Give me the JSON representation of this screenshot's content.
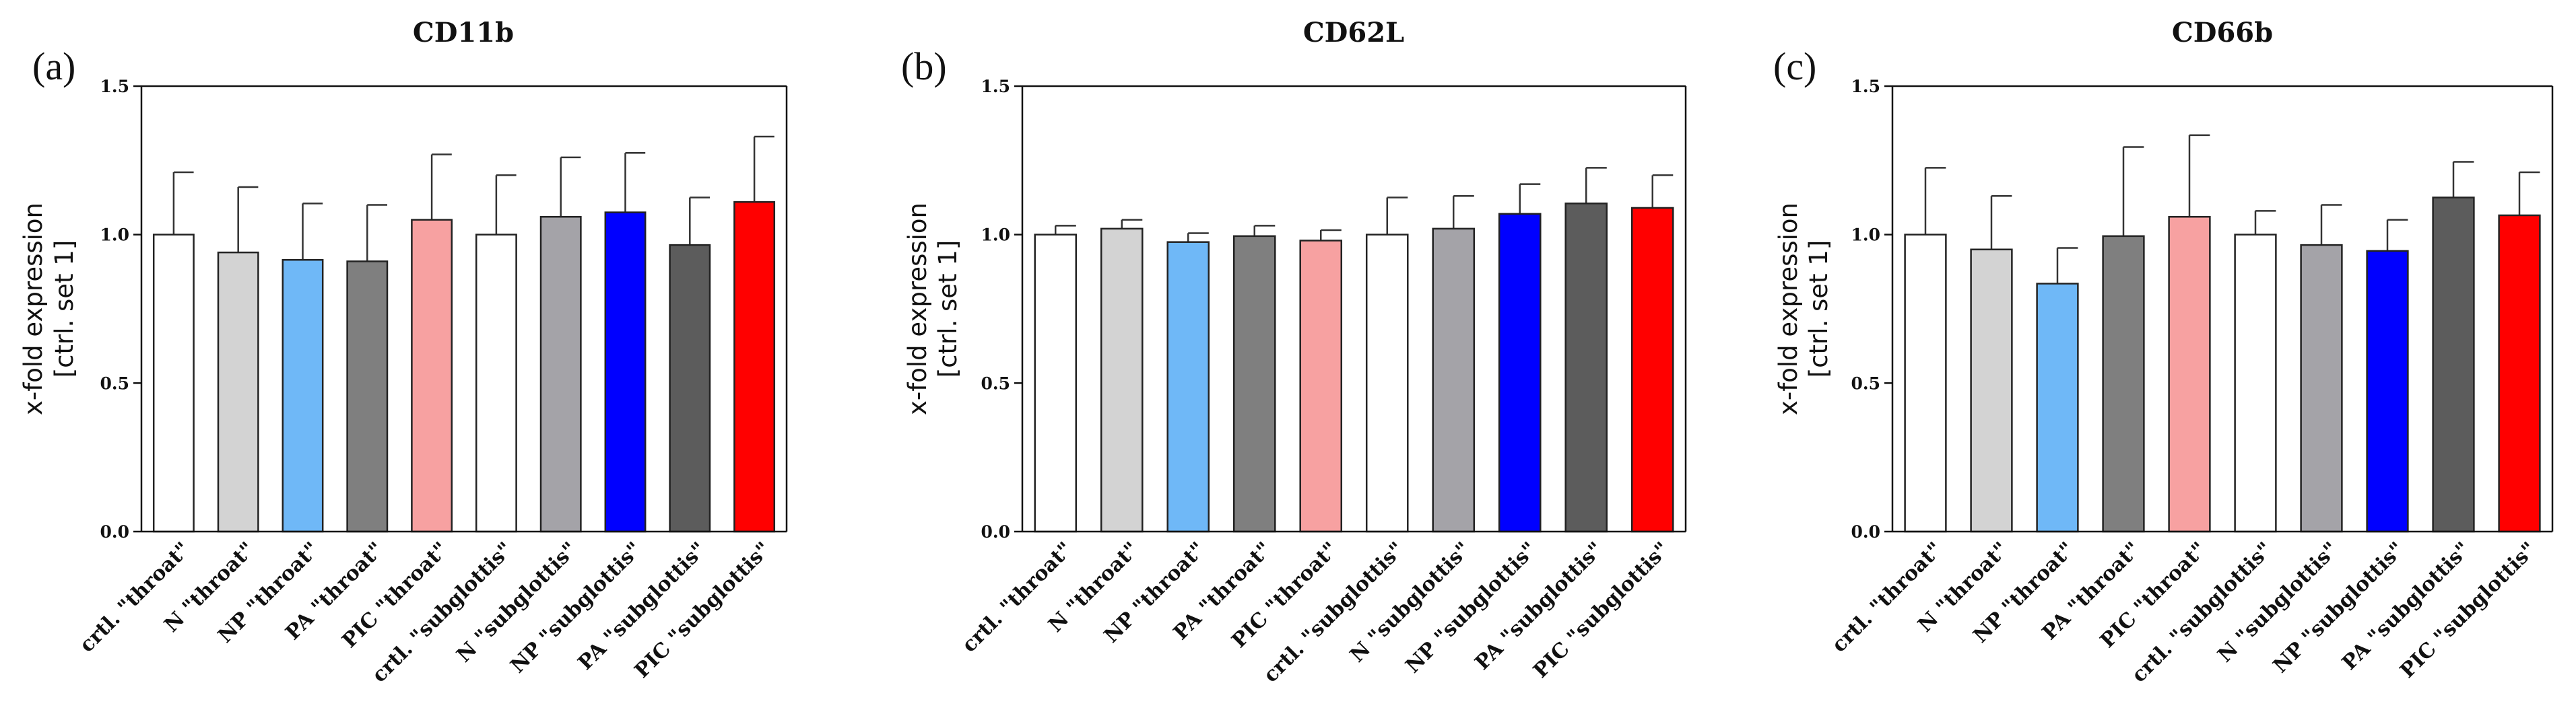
{
  "chart_data": [
    {
      "type": "bar",
      "panel": "(a)",
      "title": "CD11b",
      "ylabel_line1": "x-fold expression",
      "ylabel_line2": "[ctrl. set 1]",
      "xlabel": "",
      "ylim": [
        0,
        1.5
      ],
      "yticks": [
        "0.0",
        "0.5",
        "1.0",
        "1.5"
      ],
      "categories": [
        "crtl. \"throat\"",
        "N \"throat\"",
        "NP \"throat\"",
        "PA \"throat\"",
        "PIC \"throat\"",
        "crtl. \"subglottis\"",
        "N \"subglottis\"",
        "NP \"subglottis\"",
        "PA \"subglottis\"",
        "PIC \"subglottis\""
      ],
      "values": [
        1.0,
        0.94,
        0.915,
        0.91,
        1.05,
        1.0,
        1.06,
        1.075,
        0.965,
        1.11
      ],
      "errors": [
        0.21,
        0.22,
        0.19,
        0.19,
        0.22,
        0.2,
        0.2,
        0.2,
        0.16,
        0.22
      ],
      "colors": [
        "#ffffff",
        "#d3d3d3",
        "#6fb8f7",
        "#7f7f7f",
        "#f7a1a1",
        "#ffffff",
        "#a4a3a8",
        "#0000ff",
        "#5c5c5c",
        "#ff0000"
      ]
    },
    {
      "type": "bar",
      "panel": "(b)",
      "title": "CD62L",
      "ylabel_line1": "x-fold expression",
      "ylabel_line2": "[ctrl. set 1]",
      "xlabel": "",
      "ylim": [
        0,
        1.5
      ],
      "yticks": [
        "0.0",
        "0.5",
        "1.0",
        "1.5"
      ],
      "categories": [
        "crtl. \"throat\"",
        "N \"throat\"",
        "NP \"throat\"",
        "PA \"throat\"",
        "PIC \"throat\"",
        "crtl. \"subglottis\"",
        "N \"subglottis\"",
        "NP \"subglottis\"",
        "PA \"subglottis\"",
        "PIC \"subglottis\""
      ],
      "values": [
        1.0,
        1.02,
        0.975,
        0.995,
        0.98,
        1.0,
        1.02,
        1.07,
        1.105,
        1.09
      ],
      "errors": [
        0.03,
        0.03,
        0.03,
        0.035,
        0.035,
        0.125,
        0.11,
        0.1,
        0.12,
        0.11
      ],
      "colors": [
        "#ffffff",
        "#d3d3d3",
        "#6fb8f7",
        "#7f7f7f",
        "#f7a1a1",
        "#ffffff",
        "#a4a3a8",
        "#0000ff",
        "#5c5c5c",
        "#ff0000"
      ]
    },
    {
      "type": "bar",
      "panel": "(c)",
      "title": "CD66b",
      "ylabel_line1": "x-fold expression",
      "ylabel_line2": "[ctrl. set 1]",
      "xlabel": "",
      "ylim": [
        0,
        1.5
      ],
      "yticks": [
        "0.0",
        "0.5",
        "1.0",
        "1.5"
      ],
      "categories": [
        "crtl. \"throat\"",
        "N \"throat\"",
        "NP \"throat\"",
        "PA \"throat\"",
        "PIC \"throat\"",
        "crtl. \"subglottis\"",
        "N \"subglottis\"",
        "NP \"subglottis\"",
        "PA \"subglottis\"",
        "PIC \"subglottis\""
      ],
      "values": [
        1.0,
        0.95,
        0.835,
        0.995,
        1.06,
        1.0,
        0.965,
        0.945,
        1.125,
        1.065
      ],
      "errors": [
        0.225,
        0.18,
        0.12,
        0.3,
        0.275,
        0.08,
        0.135,
        0.105,
        0.12,
        0.145
      ],
      "colors": [
        "#ffffff",
        "#d3d3d3",
        "#6fb8f7",
        "#7f7f7f",
        "#f7a1a1",
        "#ffffff",
        "#a4a3a8",
        "#0000ff",
        "#5c5c5c",
        "#ff0000"
      ]
    }
  ]
}
